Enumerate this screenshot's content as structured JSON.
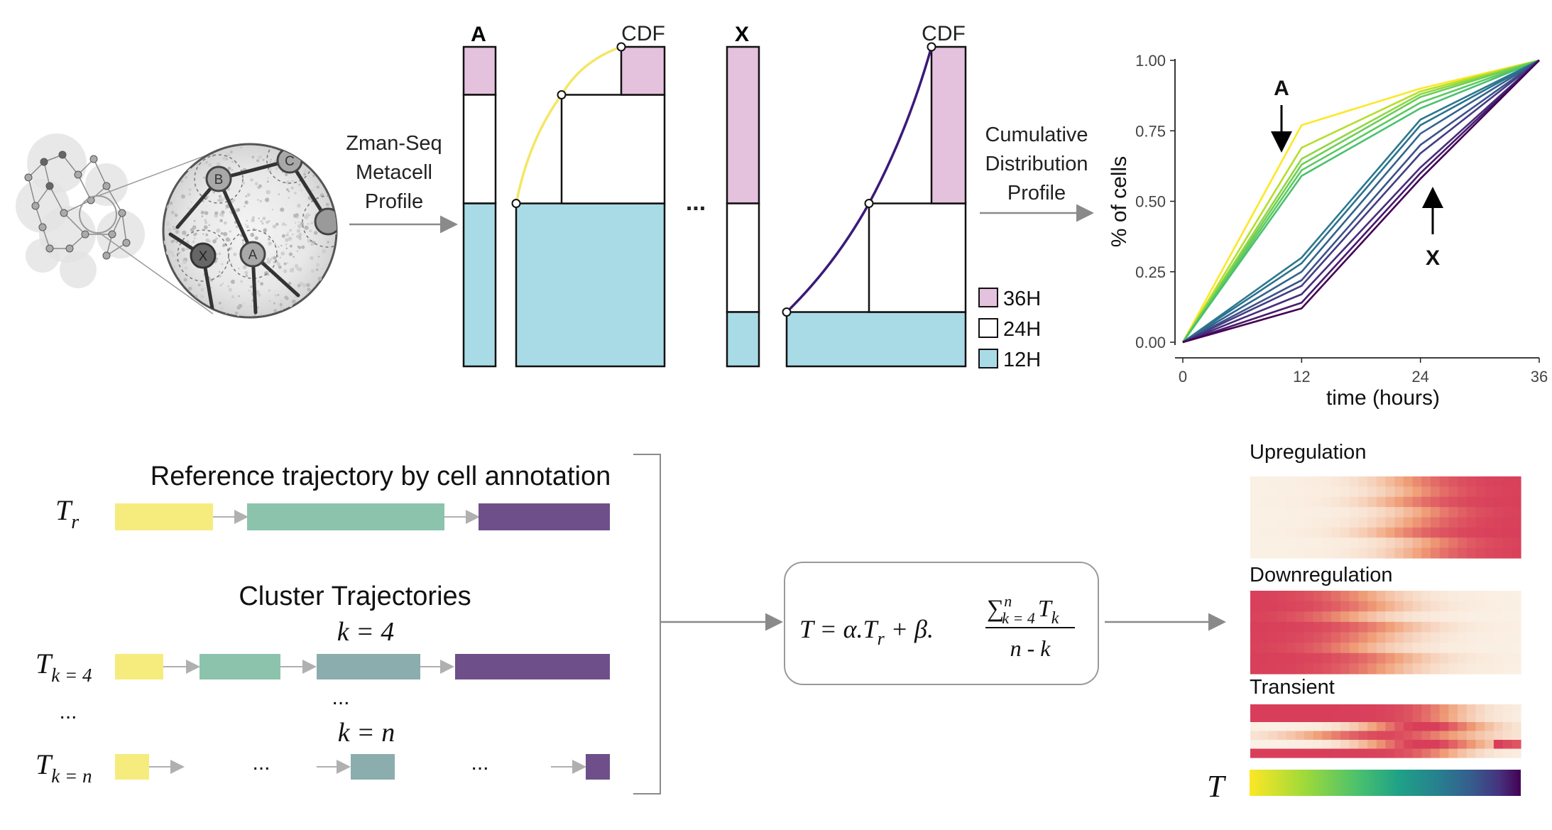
{
  "colors": {
    "pink": "#e4c1dc",
    "blue": "#a9dbe6",
    "yellow_curve": "#f5e663",
    "purple_curve": "#3b1a78",
    "gray_arrow": "#8a8a8a",
    "traj_yellow": "#f6ec7e",
    "traj_teal": "#8cc3ad",
    "traj_slate": "#8badae",
    "traj_purple": "#6e4f8a"
  },
  "network": {
    "nodes": [
      "B",
      "C",
      "X",
      "A"
    ]
  },
  "top": {
    "arrow1_label_lines": [
      "Zman-Seq",
      "Metacell",
      "Profile"
    ],
    "arrow2_label_lines": [
      "Cumulative",
      "Distribution",
      "Profile"
    ],
    "metacell_A": {
      "label": "A",
      "cdf_label": "CDF",
      "fractions": {
        "12H": 0.51,
        "24H": 0.34,
        "36H": 0.15
      }
    },
    "metacell_X": {
      "label": "X",
      "cdf_label": "CDF",
      "fractions": {
        "12H": 0.17,
        "24H": 0.34,
        "36H": 0.49
      }
    },
    "ellipsis": "...",
    "legend": [
      {
        "label": "36H",
        "color": "#e4c1dc"
      },
      {
        "label": "24H",
        "color": "#ffffff"
      },
      {
        "label": "12H",
        "color": "#a9dbe6"
      }
    ]
  },
  "chart_data": {
    "type": "line",
    "xlabel": "time (hours)",
    "ylabel": "% of cells",
    "x": [
      0,
      12,
      24,
      36
    ],
    "x_ticks": [
      "0",
      "12",
      "24",
      "36"
    ],
    "y_ticks": [
      "0.00",
      "0.25",
      "0.50",
      "0.75",
      "1.00"
    ],
    "xlim": [
      0,
      36
    ],
    "ylim": [
      0,
      1
    ],
    "annotations": [
      {
        "text": "A",
        "direction": "down"
      },
      {
        "text": "X",
        "direction": "up"
      }
    ],
    "series": [
      {
        "color": "#fde725",
        "values": [
          0,
          0.77,
          0.9,
          1.0
        ]
      },
      {
        "color": "#b5de2b",
        "values": [
          0,
          0.69,
          0.89,
          1.0
        ]
      },
      {
        "color": "#8fd744",
        "values": [
          0,
          0.65,
          0.88,
          1.0
        ]
      },
      {
        "color": "#6ece58",
        "values": [
          0,
          0.63,
          0.87,
          1.0
        ]
      },
      {
        "color": "#5ec962",
        "values": [
          0,
          0.61,
          0.85,
          1.0
        ]
      },
      {
        "color": "#4ac16d",
        "values": [
          0,
          0.59,
          0.83,
          1.0
        ]
      },
      {
        "color": "#2a788e",
        "values": [
          0,
          0.3,
          0.79,
          1.0
        ]
      },
      {
        "color": "#2c728e",
        "values": [
          0,
          0.28,
          0.77,
          1.0
        ]
      },
      {
        "color": "#33638d",
        "values": [
          0,
          0.25,
          0.74,
          1.0
        ]
      },
      {
        "color": "#3b528b",
        "values": [
          0,
          0.22,
          0.7,
          1.0
        ]
      },
      {
        "color": "#433e85",
        "values": [
          0,
          0.2,
          0.67,
          1.0
        ]
      },
      {
        "color": "#472d7b",
        "values": [
          0,
          0.17,
          0.62,
          1.0
        ]
      },
      {
        "color": "#481a6c",
        "values": [
          0,
          0.14,
          0.6,
          1.0
        ]
      },
      {
        "color": "#440154",
        "values": [
          0,
          0.12,
          0.58,
          1.0
        ]
      }
    ]
  },
  "bottom": {
    "reference_title": "Reference trajectory by cell annotation",
    "clusters_title": "Cluster Trajectories",
    "k_first": "k = 4",
    "k_last": "k = n",
    "dots": "...",
    "tr_label": "T",
    "tr_sub": "r",
    "tk4_label": "T",
    "tk4_sub": "k = 4",
    "tkn_label": "T",
    "tkn_sub": "k = n",
    "formula": {
      "lhs": "T = α.T",
      "lhs_sub": "r",
      "plus": " + β.",
      "num_sum": "∑",
      "num_sup": "n",
      "num_sub": "k = 4",
      "num_T": "T",
      "num_T_sub": "k",
      "den": "n - k"
    }
  },
  "heatmaps": {
    "upregulation": "Upregulation",
    "downregulation": "Downregulation",
    "transient": "Transient",
    "t_label": "T"
  }
}
